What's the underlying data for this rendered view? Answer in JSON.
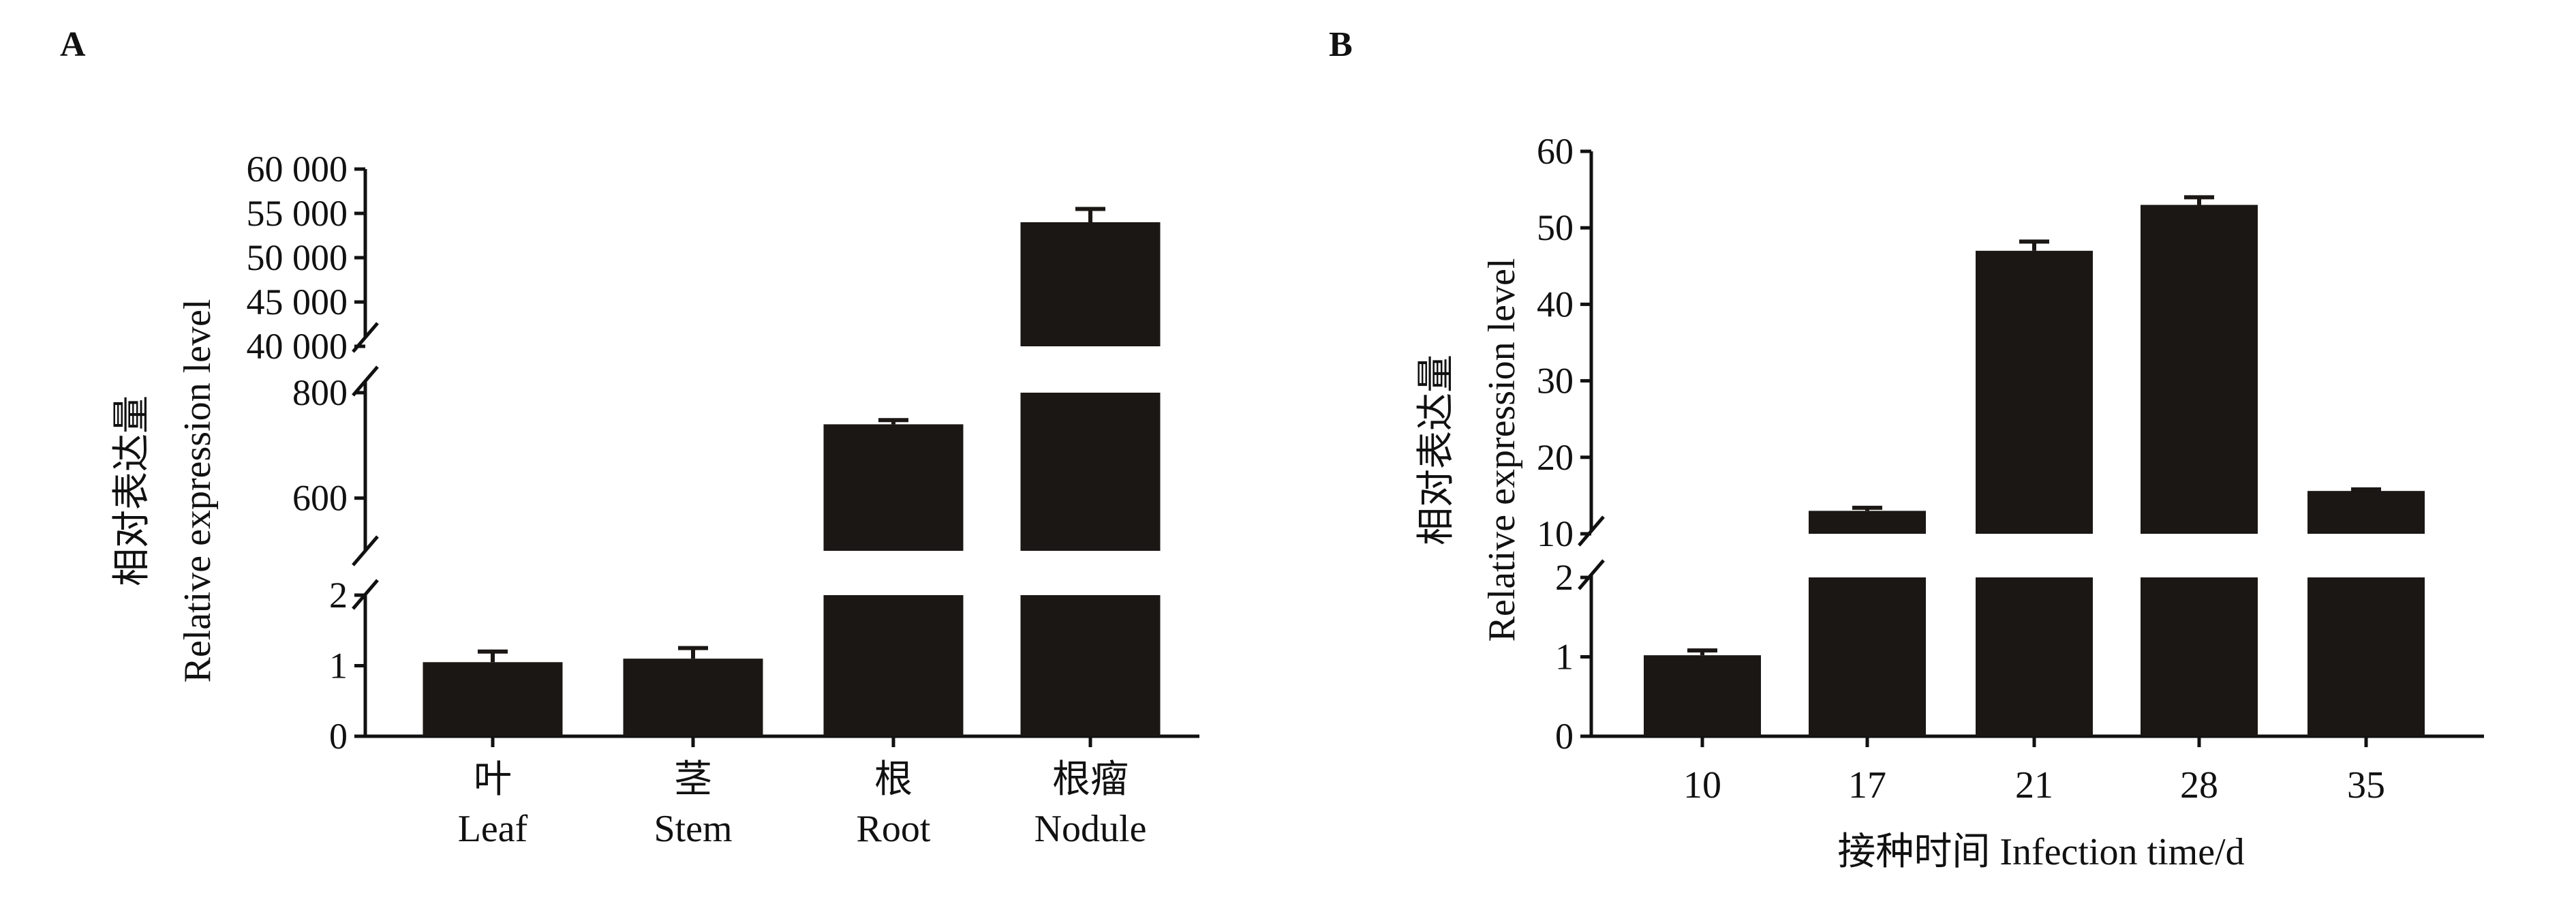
{
  "colors": {
    "bar": "#1b1715",
    "axis": "#111111",
    "background": "#ffffff"
  },
  "chart_data": [
    {
      "panel": "A",
      "type": "bar",
      "categories": [
        {
          "cn": "叶",
          "en": "Leaf"
        },
        {
          "cn": "茎",
          "en": "Stem"
        },
        {
          "cn": "根",
          "en": "Root"
        },
        {
          "cn": "根瘤",
          "en": "Nodule"
        }
      ],
      "values": [
        1.05,
        1.1,
        740,
        54000
      ],
      "errors": [
        0.15,
        0.15,
        8,
        1500
      ],
      "ylabel_cn": "相对表达量",
      "ylabel_en": "Relative expression level",
      "xlabel": "",
      "y_axis": "broken",
      "y_segments": [
        {
          "range": [
            0,
            2
          ],
          "ticks": [
            "0",
            "1",
            "2"
          ]
        },
        {
          "range": [
            500,
            800
          ],
          "ticks": [
            "600",
            "800"
          ]
        },
        {
          "range": [
            40000,
            60000
          ],
          "ticks": [
            "40 000",
            "45 000",
            "50 000",
            "55 000",
            "60 000"
          ]
        }
      ]
    },
    {
      "panel": "B",
      "type": "bar",
      "categories": [
        "10",
        "17",
        "21",
        "28",
        "35"
      ],
      "values": [
        1.02,
        13,
        47,
        53,
        15.6
      ],
      "errors": [
        0.06,
        0.4,
        1.2,
        1.0,
        0.2
      ],
      "ylabel_cn": "相对表达量",
      "ylabel_en": "Relative expression level",
      "xlabel": "接种时间 Infection time/d",
      "y_axis": "broken",
      "y_segments": [
        {
          "range": [
            0,
            2
          ],
          "ticks": [
            "0",
            "1",
            "2"
          ]
        },
        {
          "range": [
            10,
            60
          ],
          "ticks": [
            "10",
            "20",
            "30",
            "40",
            "50",
            "60"
          ]
        }
      ]
    }
  ]
}
